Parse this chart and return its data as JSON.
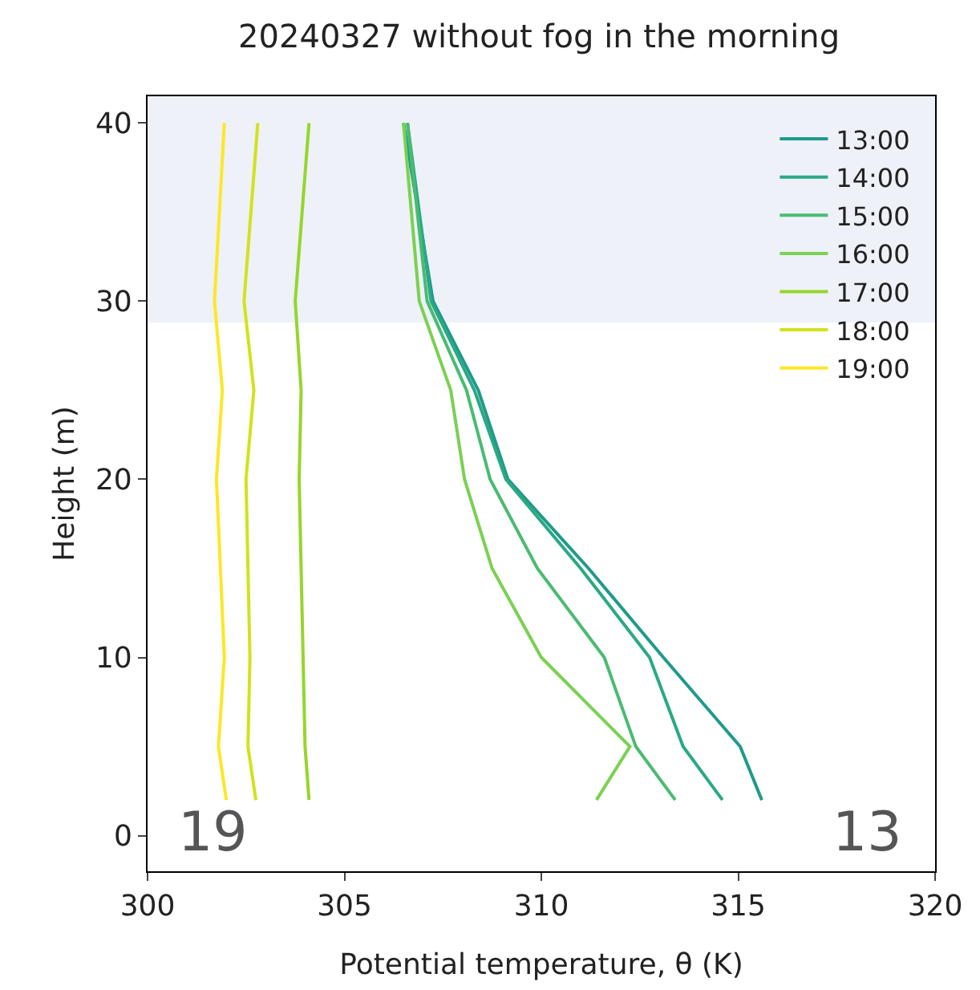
{
  "chart_data": {
    "type": "line",
    "title": "20240327 without fog in the morning",
    "xlabel": "Potential temperature, θ (K)",
    "ylabel": "Height (m)",
    "xlim": [
      300,
      320
    ],
    "xticks": [
      300,
      305,
      310,
      315,
      320
    ],
    "ylim": [
      -2,
      41.5
    ],
    "yticks": [
      0,
      10,
      20,
      30,
      40
    ],
    "series": [
      {
        "name": "13:00",
        "color": "#1f9a8a",
        "x": [
          315.6,
          315.05,
          313.1,
          311.2,
          309.15,
          308.4,
          307.25,
          306.5
        ],
        "values": [
          2,
          5,
          10,
          15,
          20,
          25,
          30,
          40
        ]
      },
      {
        "name": "14:00",
        "color": "#2aa985",
        "x": [
          314.6,
          313.6,
          312.75,
          311.0,
          309.1,
          308.3,
          307.2,
          306.6
        ],
        "values": [
          2,
          5,
          10,
          15,
          20,
          25,
          30,
          40
        ]
      },
      {
        "name": "15:00",
        "color": "#4abb72",
        "x": [
          313.4,
          312.4,
          311.6,
          309.9,
          308.7,
          308.1,
          307.1,
          306.6
        ],
        "values": [
          2,
          5,
          10,
          15,
          20,
          25,
          30,
          40
        ]
      },
      {
        "name": "16:00",
        "color": "#7ad151",
        "x": [
          311.4,
          312.25,
          310.0,
          308.75,
          308.05,
          307.7,
          306.9,
          306.5
        ],
        "values": [
          2,
          5,
          10,
          15,
          20,
          25,
          30,
          40
        ]
      },
      {
        "name": "17:00",
        "color": "#95d62b",
        "x": [
          304.1,
          304.0,
          303.95,
          303.9,
          303.85,
          303.9,
          303.75,
          304.1
        ],
        "values": [
          2,
          5,
          10,
          15,
          20,
          25,
          30,
          40
        ]
      },
      {
        "name": "18:00",
        "color": "#d2e21b",
        "x": [
          302.75,
          302.55,
          302.6,
          302.55,
          302.5,
          302.7,
          302.45,
          302.8
        ],
        "values": [
          2,
          5,
          10,
          15,
          20,
          25,
          30,
          40
        ]
      },
      {
        "name": "19:00",
        "color": "#fde725",
        "x": [
          302.0,
          301.8,
          301.95,
          301.85,
          301.75,
          301.9,
          301.7,
          301.95
        ],
        "values": [
          2,
          5,
          10,
          15,
          20,
          25,
          30,
          40
        ]
      }
    ],
    "bands": [
      {
        "axis": "y",
        "from": 28.8,
        "to": 41.5,
        "color": "#eef1f8"
      }
    ],
    "annotations": [
      "19",
      "13"
    ],
    "legend": "top right",
    "grid": false
  }
}
